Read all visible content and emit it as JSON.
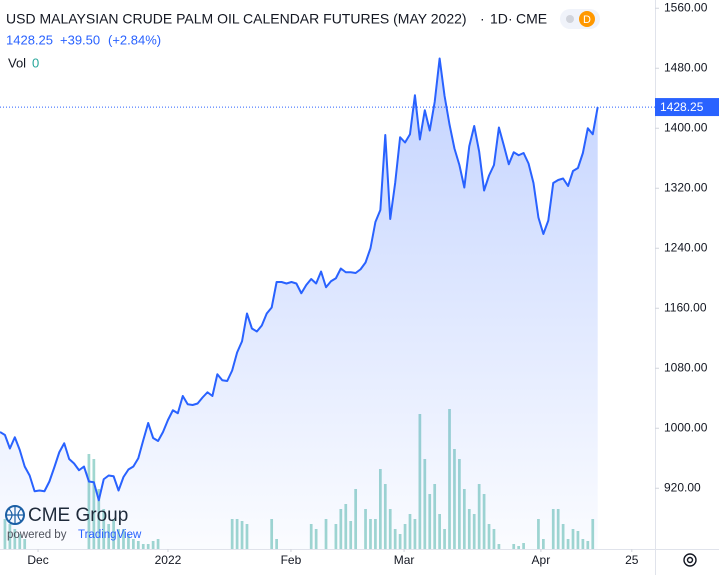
{
  "chart_data": {
    "type": "line",
    "title": "USD MALAYSIAN CRUDE PALM OIL CALENDAR FUTURES (MAY 2022)",
    "interval": "1D",
    "exchange": "CME",
    "badge": "D",
    "change": "+39.50",
    "change_pct": "(+2.84%)",
    "volume_label": "Vol",
    "volume_value": "0",
    "logo": "CME Group",
    "powered_by": "powered by",
    "platform": "TradingView",
    "x": [
      0,
      1,
      2,
      3,
      4,
      5,
      6,
      7,
      8,
      9,
      10,
      11,
      12,
      13,
      14,
      15,
      16,
      17,
      18,
      19,
      20,
      21,
      22,
      23,
      24,
      25,
      26,
      27,
      28,
      29,
      30,
      31,
      32,
      33,
      34,
      35,
      36,
      37,
      38,
      39,
      40,
      41,
      42,
      43,
      44,
      45,
      46,
      47,
      48,
      49,
      50,
      51,
      52,
      53,
      54,
      55,
      56,
      57,
      58,
      59,
      60,
      61,
      62,
      63,
      64,
      65,
      66,
      67,
      68,
      69,
      70,
      71,
      72,
      73,
      74,
      75,
      76,
      77,
      78,
      79,
      80,
      81,
      82,
      83,
      84,
      85,
      86,
      87,
      88,
      89,
      90,
      91,
      92,
      93,
      94,
      95,
      96,
      97,
      98,
      99,
      100,
      101,
      102,
      103,
      104,
      105,
      106,
      107,
      108,
      109,
      110,
      111,
      112,
      113,
      114,
      115,
      116,
      117,
      118,
      119,
      120,
      121
    ],
    "series": [
      {
        "name": "Price",
        "color": "#2962ff",
        "values": [
          995,
          991,
          973,
          988,
          971,
          949,
          937,
          916,
          917,
          916,
          929,
          948,
          968,
          980,
          959,
          953,
          944,
          949,
          929,
          928,
          904,
          932,
          937,
          936,
          917,
          935,
          945,
          949,
          960,
          984,
          1007,
          987,
          983,
          995,
          1011,
          1024,
          1020,
          1043,
          1032,
          1031,
          1033,
          1041,
          1048,
          1043,
          1072,
          1064,
          1063,
          1077,
          1101,
          1116,
          1153,
          1133,
          1129,
          1137,
          1153,
          1161,
          1195,
          1195,
          1193,
          1195,
          1193,
          1180,
          1191,
          1199,
          1193,
          1209,
          1188,
          1196,
          1200,
          1213,
          1208,
          1208,
          1207,
          1212,
          1221,
          1240,
          1275,
          1291,
          1391,
          1279,
          1327,
          1388,
          1381,
          1392,
          1444,
          1385,
          1424,
          1397,
          1435,
          1493,
          1443,
          1405,
          1373,
          1351,
          1321,
          1376,
          1403,
          1369,
          1317,
          1337,
          1351,
          1401,
          1377,
          1352,
          1368,
          1364,
          1367,
          1353,
          1327,
          1281,
          1259,
          1277,
          1327,
          1331,
          1333,
          1323,
          1343,
          1347,
          1367,
          1400,
          1392,
          1428.25
        ]
      },
      {
        "name": "Volume",
        "color": "#8fd0c8",
        "values": [
          0,
          30,
          25,
          20,
          15,
          10,
          0,
          0,
          0,
          0,
          0,
          0,
          0,
          0,
          0,
          0,
          0,
          0,
          95,
          90,
          60,
          40,
          25,
          30,
          20,
          20,
          15,
          10,
          8,
          5,
          5,
          8,
          10,
          0,
          0,
          0,
          0,
          0,
          0,
          0,
          0,
          0,
          0,
          0,
          0,
          0,
          0,
          30,
          30,
          28,
          25,
          0,
          0,
          0,
          0,
          30,
          10,
          0,
          0,
          0,
          0,
          0,
          0,
          25,
          20,
          0,
          30,
          0,
          25,
          40,
          45,
          28,
          60,
          0,
          40,
          30,
          30,
          80,
          65,
          40,
          20,
          15,
          25,
          35,
          30,
          135,
          90,
          55,
          65,
          35,
          20,
          140,
          100,
          90,
          60,
          40,
          35,
          65,
          55,
          25,
          20,
          5,
          0,
          0,
          5,
          3,
          6,
          0,
          0,
          30,
          10,
          0,
          40,
          40,
          25,
          10,
          20,
          18,
          10,
          8,
          30,
          0
        ]
      }
    ],
    "xlim": [
      0,
      132.6
    ],
    "xticks": [
      {
        "value": 7.7,
        "label": "Dec"
      },
      {
        "value": 34,
        "label": "2022"
      },
      {
        "value": 58.9,
        "label": "Feb"
      },
      {
        "value": 81.8,
        "label": "Mar"
      },
      {
        "value": 109.5,
        "label": "Apr"
      },
      {
        "value": 127.9,
        "label": "25"
      }
    ],
    "ylim": [
      839,
      1571
    ],
    "yticks": [
      {
        "value": 920,
        "label": "920.00"
      },
      {
        "value": 1000,
        "label": "1000.00"
      },
      {
        "value": 1080,
        "label": "1080.00"
      },
      {
        "value": 1160,
        "label": "1160.00"
      },
      {
        "value": 1240,
        "label": "1240.00"
      },
      {
        "value": 1320,
        "label": "1320.00"
      },
      {
        "value": 1400,
        "label": "1400.00"
      },
      {
        "value": 1480,
        "label": "1480.00"
      },
      {
        "value": 1560,
        "label": "1560.00"
      }
    ]
  }
}
